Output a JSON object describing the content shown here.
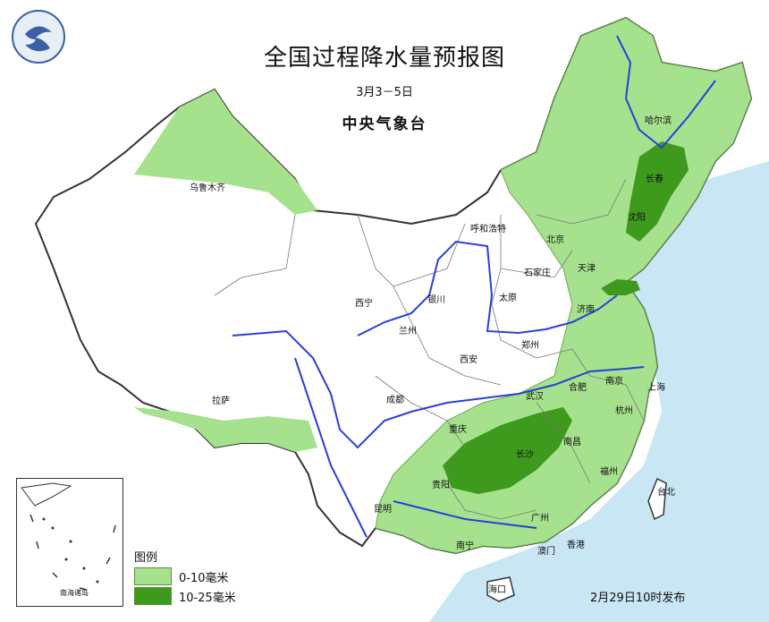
{
  "title": "全国过程降水量预报图",
  "period": "3月3－5日",
  "agency": "中央气象台",
  "issued": "2月29日10时发布",
  "legend": {
    "heading": "图例",
    "items": [
      {
        "label": "0-10毫米",
        "color": "#a6e28e"
      },
      {
        "label": "10-25毫米",
        "color": "#3e9a1c"
      }
    ]
  },
  "inset_label": "南海诸岛",
  "cities": {
    "urumqi": "乌鲁木齐",
    "harbin": "哈尔滨",
    "changchun": "长春",
    "shenyang": "沈阳",
    "hohhot": "呼和浩特",
    "beijing": "北京",
    "tianjin": "天津",
    "shijiazhuang": "石家庄",
    "taiyuan": "太原",
    "jinan": "济南",
    "xining": "西宁",
    "yinchuan": "银川",
    "lanzhou": "兰州",
    "xian": "西安",
    "zhengzhou": "郑州",
    "hefei": "合肥",
    "nanjing": "南京",
    "shanghai": "上海",
    "hangzhou": "杭州",
    "wuhan": "武汉",
    "lhasa": "拉萨",
    "chengdu": "成都",
    "chongqing": "重庆",
    "changsha": "长沙",
    "nanchang": "南昌",
    "fuzhou": "福州",
    "taipei": "台北",
    "guiyang": "贵阳",
    "kunming": "昆明",
    "guangzhou": "广州",
    "nanning": "南宁",
    "hongkong": "香港",
    "macau": "澳门",
    "haikou": "海口"
  },
  "colors": {
    "sea": "#c9e6f5",
    "land": "#ffffff",
    "rain_light": "#a6e28e",
    "rain_heavy": "#3e9a1c",
    "river": "#2a3fd8",
    "border": "#333333"
  }
}
